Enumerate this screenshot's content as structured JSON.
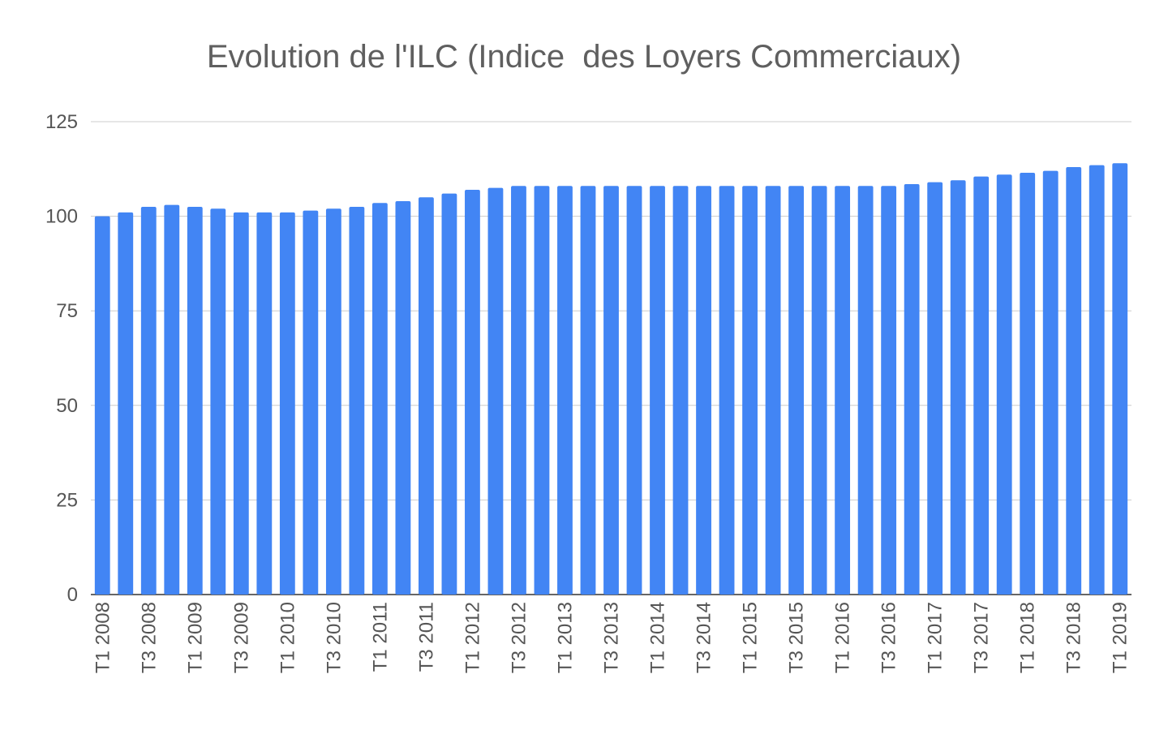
{
  "chart_data": {
    "type": "bar",
    "title": "Evolution de l'ILC (Indice  des Loyers Commerciaux)",
    "xlabel": "",
    "ylabel": "",
    "ylim": [
      0,
      125
    ],
    "yticks": [
      0,
      25,
      50,
      75,
      100,
      125
    ],
    "grid": true,
    "legend": "none",
    "bar_color": "#4285f4",
    "categories": [
      "T1 2008",
      "T2 2008",
      "T3 2008",
      "T4 2008",
      "T1 2009",
      "T2 2009",
      "T3 2009",
      "T4 2009",
      "T1 2010",
      "T2 2010",
      "T3 2010",
      "T4 2010",
      "T1 2011",
      "T2 2011",
      "T3 2011",
      "T4 2011",
      "T1 2012",
      "T2 2012",
      "T3 2012",
      "T4 2012",
      "T1 2013",
      "T2 2013",
      "T3 2013",
      "T4 2013",
      "T1 2014",
      "T2 2014",
      "T3 2014",
      "T4 2014",
      "T1 2015",
      "T2 2015",
      "T3 2015",
      "T4 2015",
      "T1 2016",
      "T2 2016",
      "T3 2016",
      "T4 2016",
      "T1 2017",
      "T2 2017",
      "T3 2017",
      "T4 2017",
      "T1 2018",
      "T2 2018",
      "T3 2018",
      "T4 2018",
      "T1 2019"
    ],
    "shown_tick_labels": [
      "T1 2008",
      "T3 2008",
      "T1 2009",
      "T3 2009",
      "T1 2010",
      "T3 2010",
      "T1 2011",
      "T3 2011",
      "T1 2012",
      "T3 2012",
      "T1 2013",
      "T3 2013",
      "T1 2014",
      "T3 2014",
      "T1 2015",
      "T3 2015",
      "T1 2016",
      "T3 2016",
      "T1 2017",
      "T3 2017",
      "T1 2018",
      "T3 2018",
      "T1 2019"
    ],
    "values": [
      100.0,
      101.0,
      102.5,
      103.0,
      102.5,
      102.0,
      101.0,
      101.0,
      101.0,
      101.5,
      102.0,
      102.5,
      103.5,
      104.0,
      105.0,
      106.0,
      107.0,
      107.5,
      108.0,
      108.0,
      108.0,
      108.0,
      108.0,
      108.0,
      108.0,
      108.0,
      108.0,
      108.0,
      108.0,
      108.0,
      108.0,
      108.0,
      108.0,
      108.0,
      108.0,
      108.5,
      109.0,
      109.5,
      110.5,
      111.0,
      111.5,
      112.0,
      113.0,
      113.5,
      114.0
    ]
  }
}
